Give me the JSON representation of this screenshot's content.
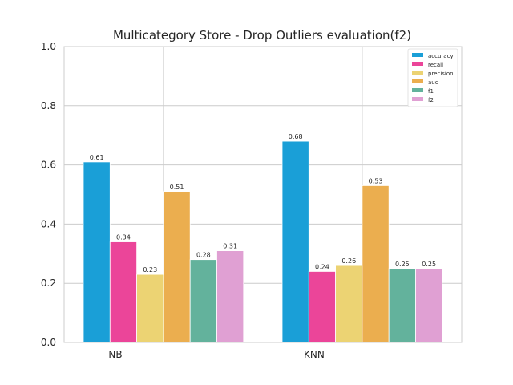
{
  "chart_data": {
    "type": "bar",
    "title": "Multicategory Store - Drop Outliers evaluation(f2)",
    "xlabel": "",
    "ylabel": "",
    "categories": [
      "NB",
      "KNN"
    ],
    "ylim": [
      0,
      1.0
    ],
    "yticks": [
      "0.0",
      "0.2",
      "0.4",
      "0.6",
      "0.8",
      "1.0"
    ],
    "grid": true,
    "legend_position": "top-right",
    "series": [
      {
        "name": "accuracy",
        "color": "#1a9fd7",
        "values": [
          0.61,
          0.68
        ],
        "labels": [
          "0.61",
          "0.68"
        ]
      },
      {
        "name": "recall",
        "color": "#eb4599",
        "values": [
          0.34,
          0.24
        ],
        "labels": [
          "0.34",
          "0.24"
        ]
      },
      {
        "name": "precision",
        "color": "#ecd373",
        "values": [
          0.23,
          0.26
        ],
        "labels": [
          "0.23",
          "0.26"
        ]
      },
      {
        "name": "auc",
        "color": "#ebae4f",
        "values": [
          0.51,
          0.53
        ],
        "labels": [
          "0.51",
          "0.53"
        ]
      },
      {
        "name": "f1",
        "color": "#63b29c",
        "values": [
          0.28,
          0.25
        ],
        "labels": [
          "0.28",
          "0.25"
        ]
      },
      {
        "name": "f2",
        "color": "#e0a0d3",
        "values": [
          0.31,
          0.25
        ],
        "labels": [
          "0.31",
          "0.25"
        ]
      }
    ]
  }
}
